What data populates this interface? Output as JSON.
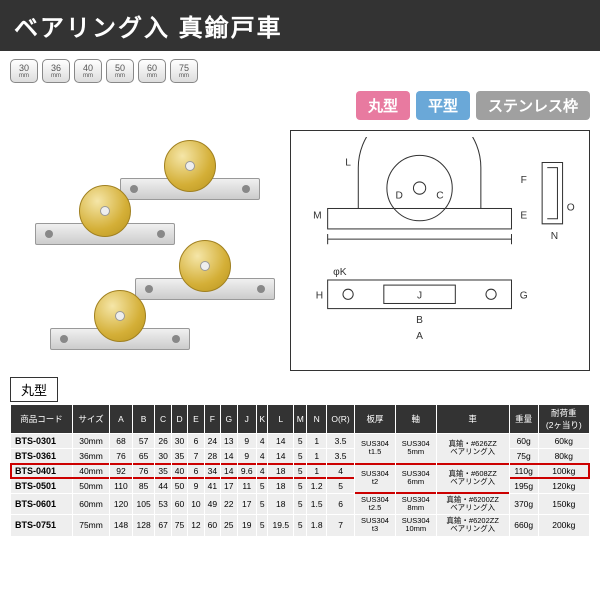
{
  "header": {
    "title": "ベアリング入 真鍮戸車"
  },
  "sizeBadges": [
    "30",
    "36",
    "40",
    "50",
    "60",
    "75"
  ],
  "typeBadges": [
    {
      "label": "丸型",
      "bg": "#e87aa0"
    },
    {
      "label": "平型",
      "bg": "#6aa8d8"
    },
    {
      "label": "ステンレス枠",
      "bg": "#a0a0a0"
    }
  ],
  "sectionLabel": "丸型",
  "table": {
    "headers": [
      "商品コード",
      "サイズ",
      "A",
      "B",
      "C",
      "D",
      "E",
      "F",
      "G",
      "J",
      "K",
      "L",
      "M",
      "N",
      "O(R)",
      "板厚",
      "軸",
      "車",
      "重量",
      "耐荷重\n(2ヶ当り)"
    ],
    "rows": [
      {
        "hl": false,
        "c": [
          "BTS-0301",
          "30mm",
          "68",
          "57",
          "26",
          "30",
          "6",
          "24",
          "13",
          "9",
          "4",
          "14",
          "5",
          "1",
          "3.5",
          "",
          "",
          "",
          "60g",
          "60kg"
        ]
      },
      {
        "hl": false,
        "c": [
          "BTS-0361",
          "36mm",
          "76",
          "65",
          "30",
          "35",
          "7",
          "28",
          "14",
          "9",
          "4",
          "14",
          "5",
          "1",
          "3.5",
          "",
          "",
          "",
          "75g",
          "80kg"
        ]
      },
      {
        "hl": true,
        "c": [
          "BTS-0401",
          "40mm",
          "92",
          "76",
          "35",
          "40",
          "6",
          "34",
          "14",
          "9.6",
          "4",
          "18",
          "5",
          "1",
          "4",
          "",
          "",
          "",
          "110g",
          "100kg"
        ]
      },
      {
        "hl": false,
        "c": [
          "BTS-0501",
          "50mm",
          "110",
          "85",
          "44",
          "50",
          "9",
          "41",
          "17",
          "11",
          "5",
          "18",
          "5",
          "1.2",
          "5",
          "",
          "",
          "",
          "195g",
          "120kg"
        ]
      },
      {
        "hl": false,
        "c": [
          "BTS-0601",
          "60mm",
          "120",
          "105",
          "53",
          "60",
          "10",
          "49",
          "22",
          "17",
          "5",
          "18",
          "5",
          "1.5",
          "6",
          "",
          "",
          "",
          "370g",
          "150kg"
        ]
      },
      {
        "hl": false,
        "c": [
          "BTS-0751",
          "75mm",
          "148",
          "128",
          "67",
          "75",
          "12",
          "60",
          "25",
          "19",
          "5",
          "19.5",
          "5",
          "1.8",
          "7",
          "",
          "",
          "",
          "660g",
          "200kg"
        ]
      }
    ],
    "spans": {
      "plate": [
        {
          "rows": [
            0,
            1
          ],
          "text": "SUS304\nt1.5"
        },
        {
          "rows": [
            2,
            3
          ],
          "text": "SUS304\nt2"
        },
        {
          "rows": [
            4
          ],
          "text": "SUS304\nt2.5"
        },
        {
          "rows": [
            5
          ],
          "text": "SUS304\nt3"
        }
      ],
      "shaft": [
        {
          "rows": [
            0,
            1
          ],
          "text": "SUS304\n5mm"
        },
        {
          "rows": [
            2,
            3
          ],
          "text": "SUS304\n6mm"
        },
        {
          "rows": [
            4
          ],
          "text": "SUS304\n8mm"
        },
        {
          "rows": [
            5
          ],
          "text": "SUS304\n10mm"
        }
      ],
      "wheel": [
        {
          "rows": [
            0,
            1
          ],
          "text": "真鍮・#626ZZ\nベアリング入"
        },
        {
          "rows": [
            2,
            3
          ],
          "text": "真鍮・#608ZZ\nベアリング入"
        },
        {
          "rows": [
            4
          ],
          "text": "真鍮・#6200ZZ\nベアリング入"
        },
        {
          "rows": [
            5
          ],
          "text": "真鍮・#6202ZZ\nベアリング入"
        }
      ]
    }
  }
}
